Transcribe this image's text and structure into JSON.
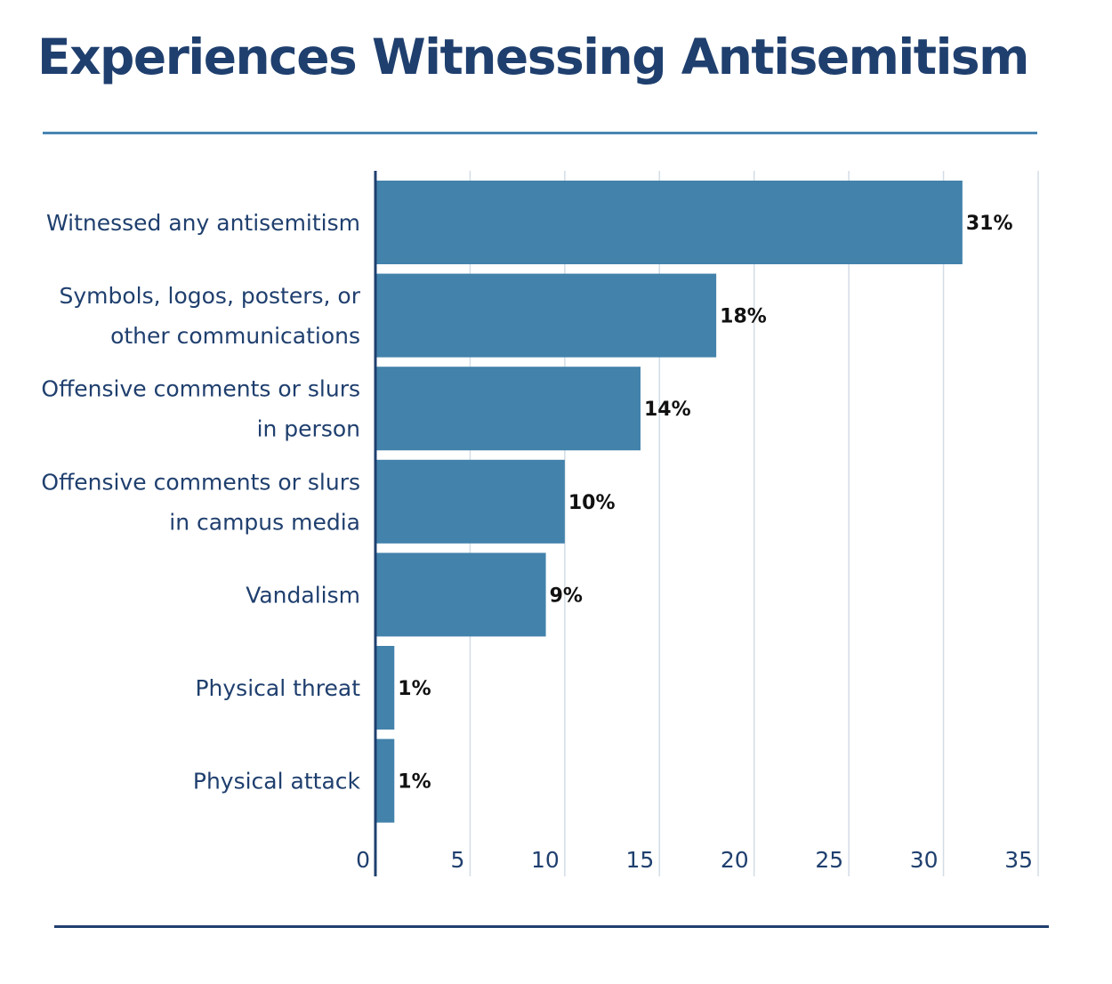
{
  "colors": {
    "bar": "#4282ab",
    "title": "#1f3f6e",
    "axis": "#1f3f6e",
    "grid": "#d3dde6",
    "rule_top": "#4a86b3"
  },
  "chart_data": {
    "type": "bar",
    "orientation": "horizontal",
    "title": "Experiences Witnessing Antisemitism",
    "categories": [
      [
        "Witnessed any antisemitism"
      ],
      [
        "Symbols, logos, posters, or",
        "other communications"
      ],
      [
        "Offensive comments or slurs",
        "in person"
      ],
      [
        "Offensive comments or slurs",
        "in campus media"
      ],
      [
        "Vandalism"
      ],
      [
        "Physical threat"
      ],
      [
        "Physical attack"
      ]
    ],
    "values": [
      31,
      18,
      14,
      10,
      9,
      1,
      1
    ],
    "data_labels": [
      "31%",
      "18%",
      "14%",
      "10%",
      "9%",
      "1%",
      "1%"
    ],
    "xlim": [
      0,
      35
    ],
    "xticks": [
      0,
      5,
      10,
      15,
      20,
      25,
      30,
      35
    ],
    "grid": true,
    "legend": "none"
  }
}
